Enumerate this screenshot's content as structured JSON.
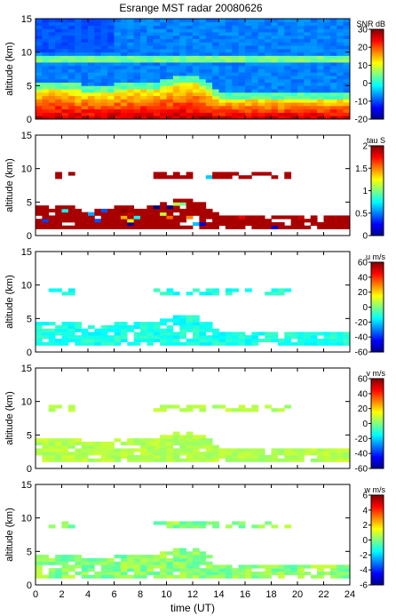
{
  "title": "Esrange MST radar 20080626",
  "xlabel": "time (UT)",
  "x_ticks": [
    "0",
    "2",
    "4",
    "6",
    "8",
    "10",
    "12",
    "14",
    "16",
    "18",
    "20",
    "22",
    "24"
  ],
  "chart_data": [
    {
      "type": "heatmap",
      "ylabel": "altitude (km)",
      "xlim": [
        0,
        24
      ],
      "ylim": [
        0,
        15
      ],
      "y_ticks": [
        "0",
        "5",
        "10",
        "15"
      ],
      "colorbar": {
        "label": "SNR dB",
        "range": [
          -20,
          30
        ],
        "ticks": [
          "30",
          "20",
          "10",
          "0",
          "-10",
          "-20"
        ]
      }
    },
    {
      "type": "heatmap",
      "ylabel": "altitude (km)",
      "xlim": [
        0,
        24
      ],
      "ylim": [
        0,
        15
      ],
      "y_ticks": [
        "0",
        "5",
        "10",
        "15"
      ],
      "colorbar": {
        "label": "tau S",
        "range": [
          0,
          2
        ],
        "ticks": [
          "2",
          "1.5",
          "1",
          "0.5",
          "0"
        ]
      }
    },
    {
      "type": "heatmap",
      "ylabel": "altitude (km)",
      "xlim": [
        0,
        24
      ],
      "ylim": [
        0,
        15
      ],
      "y_ticks": [
        "0",
        "5",
        "10",
        "15"
      ],
      "colorbar": {
        "label": "u m/s",
        "range": [
          -60,
          60
        ],
        "ticks": [
          "60",
          "40",
          "20",
          "0",
          "-20",
          "-40",
          "-60"
        ]
      }
    },
    {
      "type": "heatmap",
      "ylabel": "altitude (km)",
      "xlim": [
        0,
        24
      ],
      "ylim": [
        0,
        15
      ],
      "y_ticks": [
        "0",
        "5",
        "10",
        "15"
      ],
      "colorbar": {
        "label": "v m/s",
        "range": [
          -60,
          60
        ],
        "ticks": [
          "60",
          "40",
          "20",
          "0",
          "-20",
          "-40",
          "-60"
        ]
      }
    },
    {
      "type": "heatmap",
      "ylabel": "altitude (km)",
      "xlim": [
        0,
        24
      ],
      "ylim": [
        0,
        15
      ],
      "y_ticks": [
        "0",
        "5",
        "10",
        "15"
      ],
      "colorbar": {
        "label": "w m/s",
        "range": [
          -6,
          6
        ],
        "ticks": [
          "6",
          "4",
          "2",
          "0",
          "-2",
          "-4",
          "-6"
        ]
      }
    }
  ]
}
